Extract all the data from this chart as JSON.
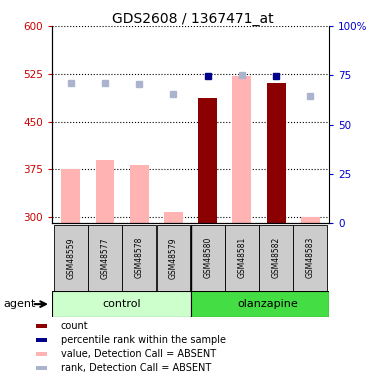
{
  "title": "GDS2608 / 1367471_at",
  "samples": [
    "GSM48559",
    "GSM48577",
    "GSM48578",
    "GSM48579",
    "GSM48580",
    "GSM48581",
    "GSM48582",
    "GSM48583"
  ],
  "bar_values": [
    375,
    390,
    382,
    308,
    487,
    522,
    510,
    300
  ],
  "bar_colors": [
    "#ffb3b3",
    "#ffb3b3",
    "#ffb3b3",
    "#ffb3b3",
    "#8b0000",
    "#ffb3b3",
    "#8b0000",
    "#ffb3b3"
  ],
  "rank_dots_y": [
    510,
    511,
    509,
    493,
    521,
    524,
    521,
    490
  ],
  "rank_dot_colors": [
    "#aab4cc",
    "#aab4cc",
    "#aab4cc",
    "#aab4cc",
    "#00008b",
    "#aab4cc",
    "#00008b",
    "#aab4cc"
  ],
  "ymin": 290,
  "ymax": 600,
  "yticks": [
    300,
    375,
    450,
    525,
    600
  ],
  "ytick_labels": [
    "300",
    "375",
    "450",
    "525",
    "600"
  ],
  "right_yticks": [
    0,
    25,
    50,
    75,
    100
  ],
  "right_ytick_labels": [
    "0",
    "25",
    "50",
    "75",
    "100%"
  ],
  "left_color": "#cc0000",
  "right_color": "#0000cc",
  "control_color": "#ccffcc",
  "olanzapine_color": "#44dd44",
  "sample_box_color": "#cccccc",
  "legend": [
    {
      "color": "#8b0000",
      "label": "count"
    },
    {
      "color": "#00008b",
      "label": "percentile rank within the sample"
    },
    {
      "color": "#ffb3b3",
      "label": "value, Detection Call = ABSENT"
    },
    {
      "color": "#aab4cc",
      "label": "rank, Detection Call = ABSENT"
    }
  ]
}
